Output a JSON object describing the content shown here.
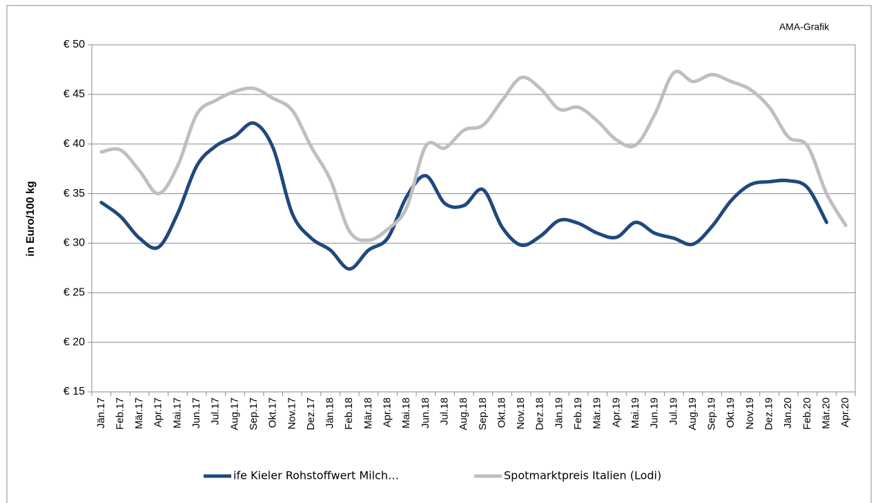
{
  "chart_data": {
    "type": "line",
    "annotation": "AMA-Grafik",
    "y_label": "in Euro/100 kg",
    "categories": [
      "Jän.17",
      "Feb.17",
      "Mär.17",
      "Apr.17",
      "Mai.17",
      "Jun.17",
      "Jul.17",
      "Aug.17",
      "Sep.17",
      "Okt.17",
      "Nov.17",
      "Dez.17",
      "Jän.18",
      "Feb.18",
      "Mär.18",
      "Apr.18",
      "Mai.18",
      "Jun.18",
      "Jul.18",
      "Aug.18",
      "Sep.18",
      "Okt.18",
      "Nov.18",
      "Dez.18",
      "Jän.19",
      "Feb.19",
      "Mär.19",
      "Apr.19",
      "Mai.19",
      "Jun.19",
      "Jul.19",
      "Aug.19",
      "Sep.19",
      "Okt.19",
      "Nov.19",
      "Dez.19",
      "Jän.20",
      "Feb.20",
      "Mär.20",
      "Apr.20"
    ],
    "series": [
      {
        "name": "ife Kieler Rohstoffwert Milch…",
        "color": "#1f497d",
        "values": [
          34.1,
          32.7,
          30.5,
          29.6,
          33.0,
          37.8,
          39.8,
          40.8,
          42.1,
          39.6,
          33.0,
          30.5,
          29.3,
          27.4,
          29.3,
          30.5,
          34.7,
          36.8,
          34.0,
          33.8,
          35.4,
          31.6,
          29.8,
          30.7,
          32.3,
          32.0,
          31.0,
          30.6,
          32.1,
          31.0,
          30.5,
          29.9,
          31.7,
          34.3,
          35.9,
          36.2,
          36.3,
          35.6,
          32.1,
          null
        ]
      },
      {
        "name": "Spotmarktpreis Italien (Lodi)",
        "color": "#bfbfbf",
        "values": [
          39.2,
          39.4,
          37.3,
          35.0,
          37.8,
          43.0,
          44.4,
          45.3,
          45.6,
          44.6,
          43.4,
          39.7,
          36.4,
          31.2,
          30.3,
          31.4,
          33.6,
          39.8,
          39.6,
          41.4,
          41.9,
          44.4,
          46.7,
          45.6,
          43.5,
          43.7,
          42.3,
          40.4,
          39.9,
          43.0,
          47.2,
          46.3,
          47.0,
          46.3,
          45.5,
          43.7,
          40.7,
          39.8,
          35.0,
          31.8
        ]
      }
    ],
    "ylim": [
      15,
      50
    ],
    "yticks": [
      {
        "value": 15,
        "label": "€ 15"
      },
      {
        "value": 20,
        "label": "€ 20"
      },
      {
        "value": 25,
        "label": "€ 25"
      },
      {
        "value": 30,
        "label": "€ 30"
      },
      {
        "value": 35,
        "label": "€ 35"
      },
      {
        "value": 40,
        "label": "€ 40"
      },
      {
        "value": 45,
        "label": "€ 45"
      },
      {
        "value": 50,
        "label": "€ 50"
      }
    ],
    "grid": true,
    "legend": "bottom"
  }
}
